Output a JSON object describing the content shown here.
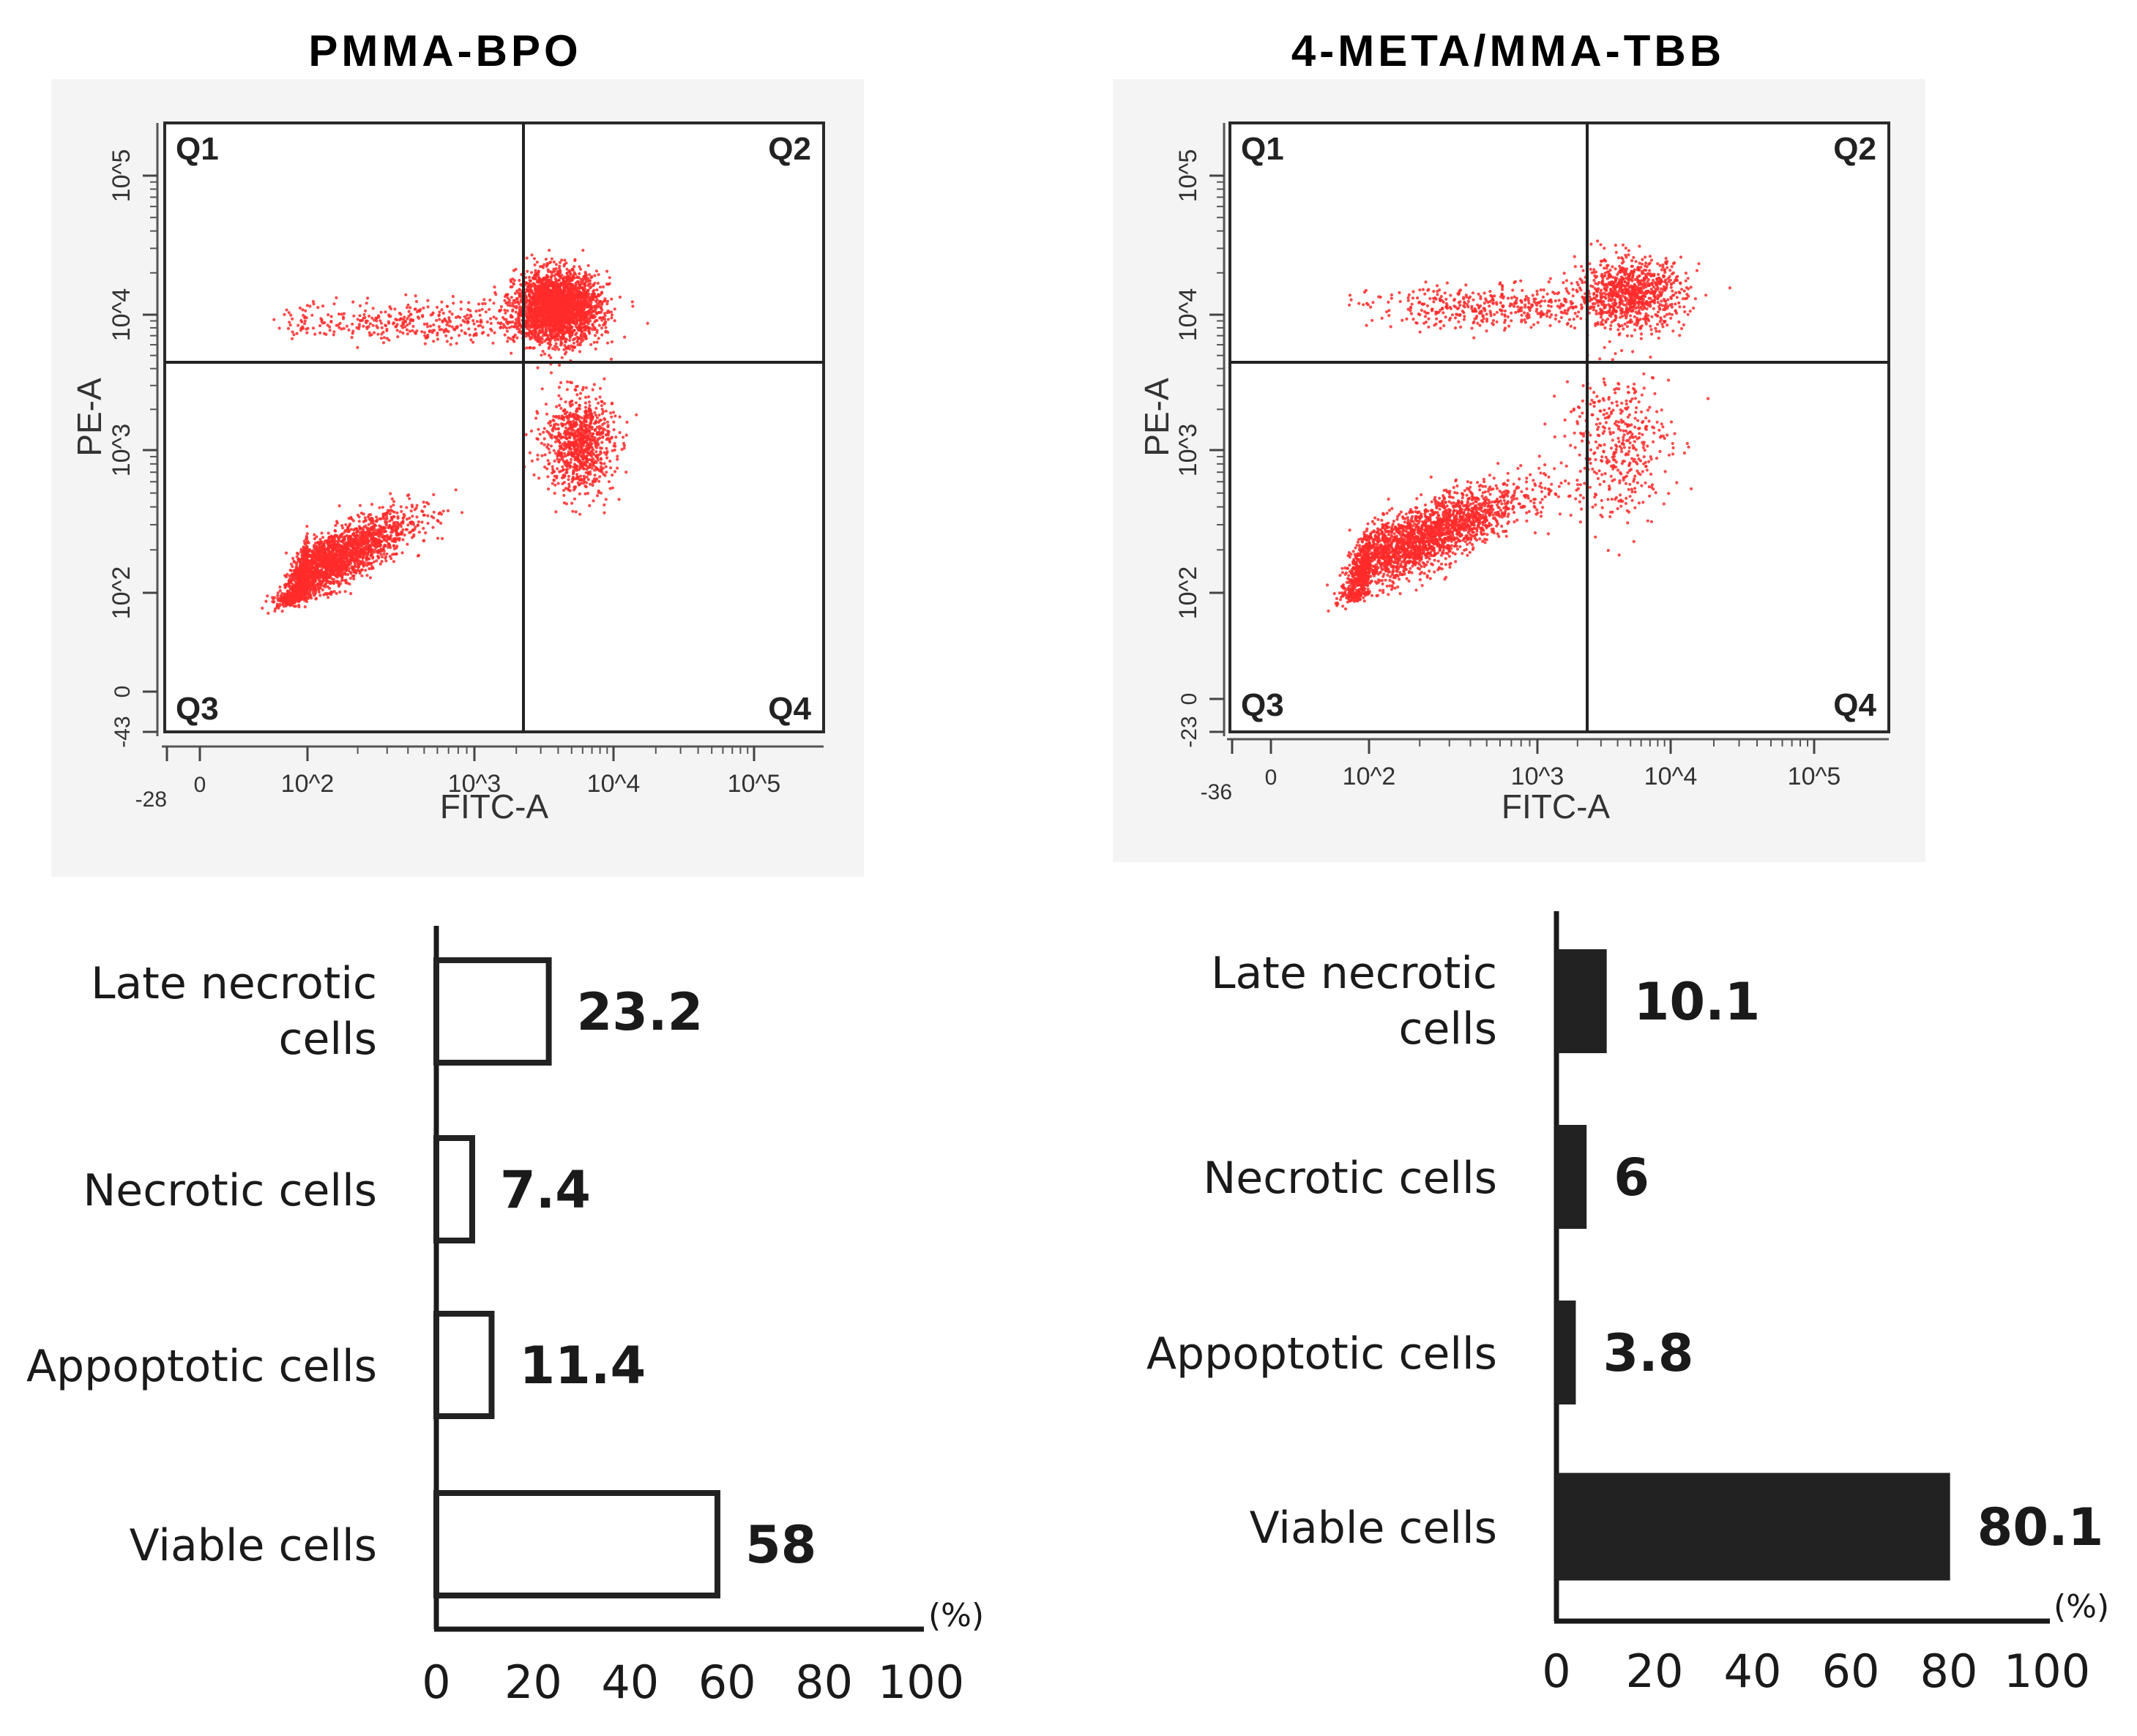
{
  "chart_data": [
    {
      "type": "scatter",
      "title": "PMMA-BPO",
      "xlabel": "FITC-A",
      "ylabel": "PE-A",
      "x_scale": "log",
      "y_scale": "log",
      "x_ticks": [
        "-28",
        "0",
        "10^2",
        "10^3",
        "10^4",
        "10^5"
      ],
      "y_ticks": [
        "-43",
        "0",
        "10^2",
        "10^3",
        "10^4",
        "10^5"
      ],
      "quadrants": [
        "Q1",
        "Q2",
        "Q3",
        "Q4"
      ],
      "point_color": "#ff2a2a",
      "clusters": [
        {
          "x_log": [
            1.6,
            2.6
          ],
          "y_log": [
            1.8,
            2.6
          ],
          "density": "high"
        },
        {
          "x_log": [
            3.3,
            3.9
          ],
          "y_log": [
            3.8,
            4.3
          ],
          "density": "high"
        },
        {
          "x_log": [
            3.5,
            4.0
          ],
          "y_log": [
            2.7,
            3.4
          ],
          "density": "medium"
        },
        {
          "x_log": [
            1.8,
            3.6
          ],
          "y_log": [
            3.8,
            4.1
          ],
          "density": "low"
        }
      ]
    },
    {
      "type": "scatter",
      "title": "4-META/MMA-TBB",
      "xlabel": "FITC-A",
      "ylabel": "PE-A",
      "x_scale": "log",
      "y_scale": "log",
      "x_ticks": [
        "-36",
        "0",
        "10^2",
        "10^3",
        "10^4",
        "10^5"
      ],
      "y_ticks": [
        "-23",
        "0",
        "10^2",
        "10^3",
        "10^4",
        "10^5"
      ],
      "quadrants": [
        "Q1",
        "Q2",
        "Q3",
        "Q4"
      ],
      "point_color": "#ff2a2a",
      "clusters": [
        {
          "x_log": [
            1.6,
            2.9
          ],
          "y_log": [
            1.9,
            2.8
          ],
          "density": "high"
        },
        {
          "x_log": [
            3.3,
            4.1
          ],
          "y_log": [
            3.9,
            4.4
          ],
          "density": "medium"
        },
        {
          "x_log": [
            2.0,
            3.5
          ],
          "y_log": [
            3.9,
            4.2
          ],
          "density": "low"
        },
        {
          "x_log": [
            3.2,
            4.0
          ],
          "y_log": [
            2.5,
            3.6
          ],
          "density": "low"
        }
      ]
    },
    {
      "type": "bar",
      "orientation": "horizontal",
      "categories": [
        "Late necrotic cells",
        "Necrotic cells",
        "Appoptotic cells",
        "Viable cells"
      ],
      "values": [
        23.2,
        7.4,
        11.4,
        58
      ],
      "value_labels": [
        "23.2",
        "7.4",
        "11.4",
        "58"
      ],
      "x_unit": "(%)",
      "x_ticks": [
        "0",
        "20",
        "40",
        "60",
        "80",
        "100"
      ],
      "xlim": [
        0,
        100
      ],
      "bar_fill": "#ffffff",
      "bar_stroke": "#222222"
    },
    {
      "type": "bar",
      "orientation": "horizontal",
      "categories": [
        "Late necrotic cells",
        "Necrotic cells",
        "Appoptotic cells",
        "Viable cells"
      ],
      "values": [
        10.1,
        6,
        3.8,
        80.1
      ],
      "value_labels": [
        "10.1",
        "6",
        "3.8",
        "80.1"
      ],
      "x_unit": "(%)",
      "x_ticks": [
        "0",
        "20",
        "40",
        "60",
        "80",
        "100"
      ],
      "xlim": [
        0,
        100
      ],
      "bar_fill": "#222222",
      "bar_stroke": "#222222"
    }
  ]
}
